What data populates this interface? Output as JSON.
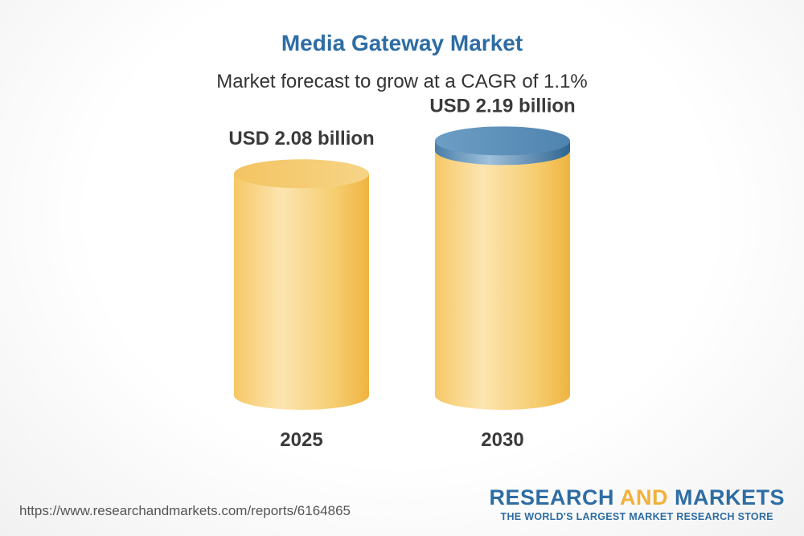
{
  "header": {
    "title": "Media Gateway Market",
    "subtitle": "Market forecast to grow at a CAGR of 1.1%"
  },
  "chart_data": {
    "type": "bar",
    "style": "3d-cylinder",
    "categories": [
      "2025",
      "2030"
    ],
    "values": [
      2.08,
      2.19
    ],
    "value_labels": [
      "USD 2.08 billion",
      "USD 2.19 billion"
    ],
    "unit": "USD billion",
    "highlight_index": 1,
    "colors": {
      "body_light": "#fbe2a8",
      "body_dark": "#f2b94a",
      "top": "#f5cd72",
      "highlight_top": "#5b8fb9"
    }
  },
  "footer": {
    "source_url": "https://www.researchandmarkets.com/reports/6164865",
    "brand_part1": "RESEARCH ",
    "brand_accent": "AND",
    "brand_part2": " MARKETS",
    "brand_tagline": "THE WORLD'S LARGEST MARKET RESEARCH STORE"
  }
}
